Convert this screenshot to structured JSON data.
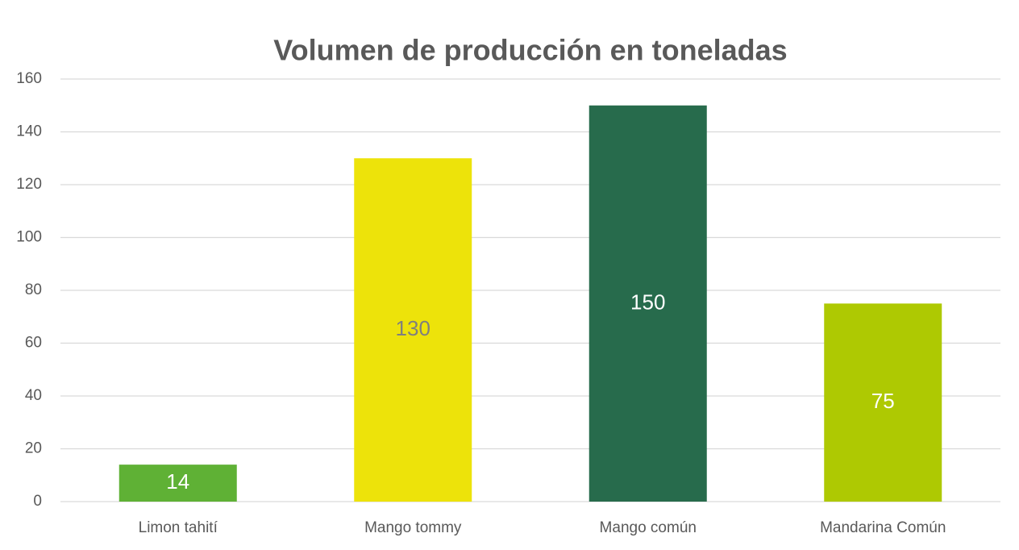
{
  "chart_data": {
    "type": "bar",
    "title": "Volumen de producción en toneladas",
    "categories": [
      "Limon tahití",
      "Mango tommy",
      "Mango común",
      "Mandarina Común"
    ],
    "values": [
      14,
      130,
      150,
      75
    ],
    "colors": [
      "#5fb135",
      "#ede30a",
      "#276b4c",
      "#aec902"
    ],
    "value_label_colors": [
      "#ffffff",
      "#7f7f7f",
      "#ffffff",
      "#ffffff"
    ],
    "ylim": [
      0,
      160
    ],
    "yticks": [
      0,
      20,
      40,
      60,
      80,
      100,
      120,
      140,
      160
    ],
    "grid": true
  }
}
